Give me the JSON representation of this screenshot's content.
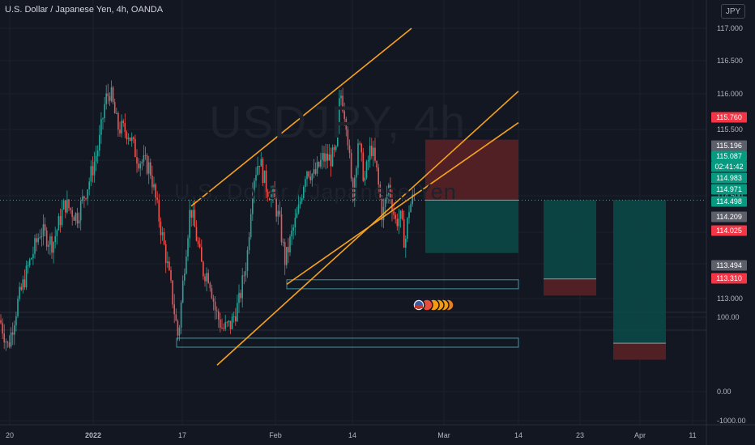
{
  "header": {
    "title": "U.S. Dollar / Japanese Yen, 4h, OANDA",
    "currency_button": "JPY"
  },
  "watermark": {
    "ticker": "USDJPY, 4h",
    "name": "U.S. Dollar / Japanese Yen"
  },
  "colors": {
    "background": "#131722",
    "up_candle": "#26a69a",
    "down_candle": "#ef5350",
    "trend_line": "#f7a21b",
    "zone_outline": "#4fb3bf",
    "target_fill": "#0b4a48",
    "stop_fill": "#5c2226",
    "label_red": "#f23645",
    "label_teal": "#089981",
    "label_grey": "#5d606b"
  },
  "chart_data": {
    "type": "candlestick",
    "title": "U.S. Dollar / Japanese Yen, 4h, OANDA",
    "y_right_ticks": [
      "117.000",
      "116.500",
      "116.000",
      "115.500",
      "115.000",
      "114.500",
      "114.000",
      "113.500",
      "113.000",
      "100.00",
      "0.00",
      "-1000.00"
    ],
    "x_ticks": [
      "20",
      "2022",
      "17",
      "Feb",
      "14",
      "Mar",
      "14",
      "23",
      "Apr",
      "11"
    ],
    "ylim": [
      112.8,
      117.2
    ],
    "price_path": [
      [
        0,
        113.75
      ],
      [
        10,
        113.45
      ],
      [
        22,
        113.95
      ],
      [
        35,
        114.35
      ],
      [
        50,
        114.75
      ],
      [
        65,
        114.6
      ],
      [
        80,
        115.05
      ],
      [
        95,
        114.9
      ],
      [
        110,
        115.3
      ],
      [
        122,
        115.7
      ],
      [
        130,
        116.2
      ],
      [
        136,
        116.3
      ],
      [
        145,
        115.9
      ],
      [
        158,
        115.85
      ],
      [
        170,
        115.55
      ],
      [
        185,
        115.45
      ],
      [
        195,
        114.95
      ],
      [
        205,
        114.45
      ],
      [
        212,
        114.05
      ],
      [
        220,
        113.55
      ],
      [
        228,
        114.4
      ],
      [
        235,
        115.02
      ],
      [
        242,
        114.7
      ],
      [
        250,
        114.3
      ],
      [
        258,
        114.25
      ],
      [
        266,
        113.85
      ],
      [
        275,
        113.65
      ],
      [
        285,
        113.7
      ],
      [
        295,
        113.95
      ],
      [
        305,
        114.45
      ],
      [
        312,
        115.3
      ],
      [
        320,
        115.55
      ],
      [
        328,
        115.25
      ],
      [
        338,
        115.1
      ],
      [
        345,
        114.85
      ],
      [
        352,
        114.4
      ],
      [
        360,
        114.7
      ],
      [
        368,
        114.95
      ],
      [
        378,
        115.45
      ],
      [
        388,
        115.35
      ],
      [
        398,
        115.55
      ],
      [
        408,
        115.55
      ],
      [
        415,
        115.6
      ],
      [
        420,
        116.3
      ],
      [
        428,
        115.95
      ],
      [
        435,
        115.1
      ],
      [
        442,
        115.75
      ],
      [
        450,
        115.3
      ],
      [
        458,
        115.7
      ],
      [
        465,
        115.4
      ],
      [
        472,
        114.9
      ],
      [
        480,
        115.25
      ],
      [
        488,
        114.85
      ],
      [
        494,
        114.9
      ],
      [
        500,
        114.6
      ],
      [
        505,
        115.0
      ],
      [
        512,
        115.15
      ]
    ],
    "trend_lines": [
      {
        "from": [
          "Jan 17",
          115.02
        ],
        "to": [
          "Feb 16",
          117.0
        ]
      },
      {
        "from": [
          "Jan 19",
          113.25
        ],
        "to": [
          "Feb 26",
          116.3
        ]
      },
      {
        "from": [
          "Feb 2",
          114.15
        ],
        "to": [
          "Feb 26",
          115.95
        ]
      }
    ],
    "zones": [
      {
        "from": "Feb 3",
        "to": "Feb 26",
        "low": 114.1,
        "high": 114.2
      },
      {
        "from": "Jan 14",
        "to": "Feb 26",
        "low": 113.45,
        "high": 113.55
      }
    ],
    "positions": [
      {
        "entry": 115.087,
        "stop": 115.76,
        "target": 114.498
      },
      {
        "entry": 114.209,
        "stop": 114.025,
        "target": 115.087
      },
      {
        "entry": 113.494,
        "stop": 113.31,
        "target": 115.087
      }
    ],
    "last_price": 115.087,
    "price_labels": [
      {
        "text": "115.760",
        "price": 115.76,
        "color": "#f23645"
      },
      {
        "text": "115.196",
        "price": 115.196,
        "color": "#5d606b"
      },
      {
        "text": "115.087",
        "price": 115.087,
        "color": "#089981"
      },
      {
        "text": "02:41:42",
        "price": 114.995,
        "color": "#089981"
      },
      {
        "text": "114.983",
        "price": 114.983,
        "color": "#089981"
      },
      {
        "text": "114.971",
        "price": 114.971,
        "color": "#089981"
      },
      {
        "text": "114.498",
        "price": 114.498,
        "color": "#089981"
      },
      {
        "text": "114.209",
        "price": 114.209,
        "color": "#5d606b"
      },
      {
        "text": "114.025",
        "price": 114.025,
        "color": "#f23645"
      },
      {
        "text": "113.494",
        "price": 113.494,
        "color": "#5d606b"
      },
      {
        "text": "113.310",
        "price": 113.31,
        "color": "#f23645"
      }
    ],
    "grid": true,
    "legend": "none"
  }
}
